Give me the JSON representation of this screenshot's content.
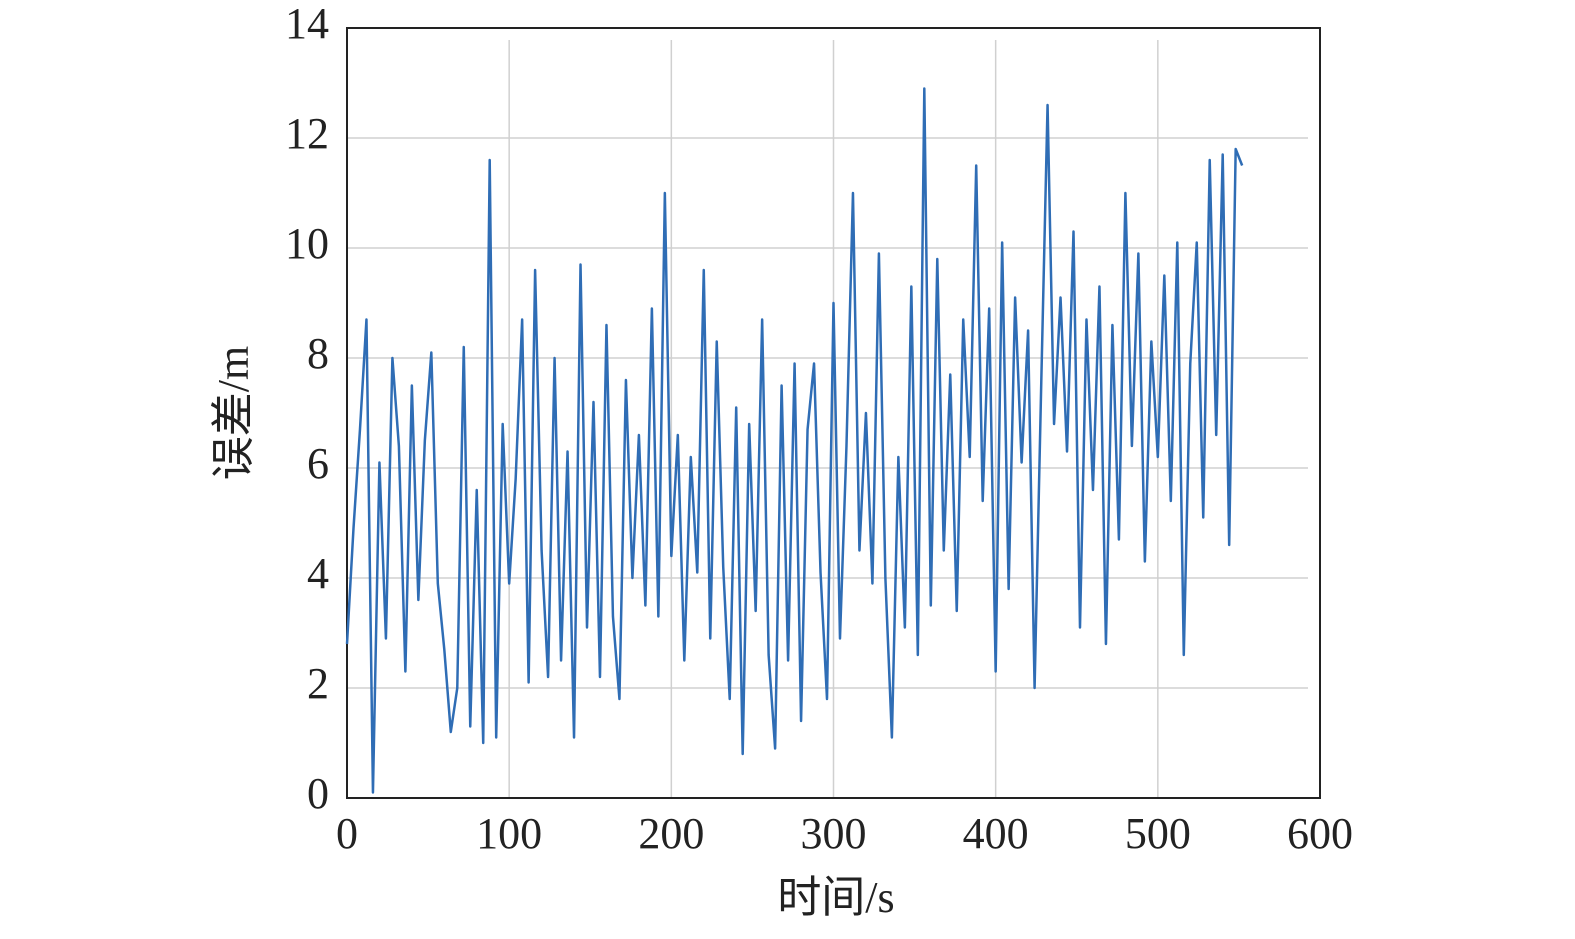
{
  "chart_data": {
    "type": "line",
    "xlabel": "时间/s",
    "ylabel": "误差/m",
    "xlim": [
      0,
      600
    ],
    "xticks": [
      0,
      100,
      200,
      300,
      400,
      500,
      600
    ],
    "ylim": [
      0,
      14
    ],
    "yticks": [
      0,
      2,
      4,
      6,
      8,
      10,
      12,
      14
    ],
    "grid": true,
    "x": [
      0,
      4,
      8,
      12,
      16,
      20,
      24,
      28,
      32,
      36,
      40,
      44,
      48,
      52,
      56,
      60,
      64,
      68,
      72,
      76,
      80,
      84,
      88,
      92,
      96,
      100,
      104,
      108,
      112,
      116,
      120,
      124,
      128,
      132,
      136,
      140,
      144,
      148,
      152,
      156,
      160,
      164,
      168,
      172,
      176,
      180,
      184,
      188,
      192,
      196,
      200,
      204,
      208,
      212,
      216,
      220,
      224,
      228,
      232,
      236,
      240,
      244,
      248,
      252,
      256,
      260,
      264,
      268,
      272,
      276,
      280,
      284,
      288,
      292,
      296,
      300,
      304,
      308,
      312,
      316,
      320,
      324,
      328,
      332,
      336,
      340,
      344,
      348,
      352,
      356,
      360,
      364,
      368,
      372,
      376,
      380,
      384,
      388,
      392,
      396,
      400,
      404,
      408,
      412,
      416,
      420,
      424,
      428,
      432,
      436,
      440,
      444,
      448,
      452,
      456,
      460,
      464,
      468,
      472,
      476,
      480,
      484,
      488,
      492,
      496,
      500,
      504,
      508,
      512,
      516,
      520,
      524,
      528,
      532,
      536,
      540,
      544,
      548,
      552
    ],
    "series": [
      {
        "color": "#2f6db5",
        "values": [
          2.8,
          4.9,
          6.7,
          8.7,
          0.1,
          6.1,
          2.9,
          8.0,
          6.4,
          2.3,
          7.5,
          3.6,
          6.5,
          8.1,
          3.9,
          2.7,
          1.2,
          2.0,
          8.2,
          1.3,
          5.6,
          1.0,
          11.6,
          1.1,
          6.8,
          3.9,
          5.8,
          8.7,
          2.1,
          9.6,
          4.5,
          2.2,
          8.0,
          2.5,
          6.3,
          1.1,
          9.7,
          3.1,
          7.2,
          2.2,
          8.6,
          3.3,
          1.8,
          7.6,
          4.0,
          6.6,
          3.5,
          8.9,
          3.3,
          11.0,
          4.4,
          6.6,
          2.5,
          6.2,
          4.1,
          9.6,
          2.9,
          8.3,
          4.2,
          1.8,
          7.1,
          0.8,
          6.8,
          3.4,
          8.7,
          2.6,
          0.9,
          7.5,
          2.5,
          7.9,
          1.4,
          6.7,
          7.9,
          4.1,
          1.8,
          9.0,
          2.9,
          6.4,
          11.0,
          4.5,
          7.0,
          3.9,
          9.9,
          4.0,
          1.1,
          6.2,
          3.1,
          9.3,
          2.6,
          12.9,
          3.5,
          9.8,
          4.5,
          7.7,
          3.4,
          8.7,
          6.2,
          11.5,
          5.4,
          8.9,
          2.3,
          10.1,
          3.8,
          9.1,
          6.1,
          8.5,
          2.0,
          7.4,
          12.6,
          6.8,
          9.1,
          6.3,
          10.3,
          3.1,
          8.7,
          5.6,
          9.3,
          2.8,
          8.6,
          4.7,
          11.0,
          6.4,
          9.9,
          4.3,
          8.3,
          6.2,
          9.5,
          5.4,
          10.1,
          2.6,
          7.9,
          10.1,
          5.1,
          11.6,
          6.6,
          11.7,
          4.6,
          11.8,
          11.5
        ]
      }
    ]
  }
}
